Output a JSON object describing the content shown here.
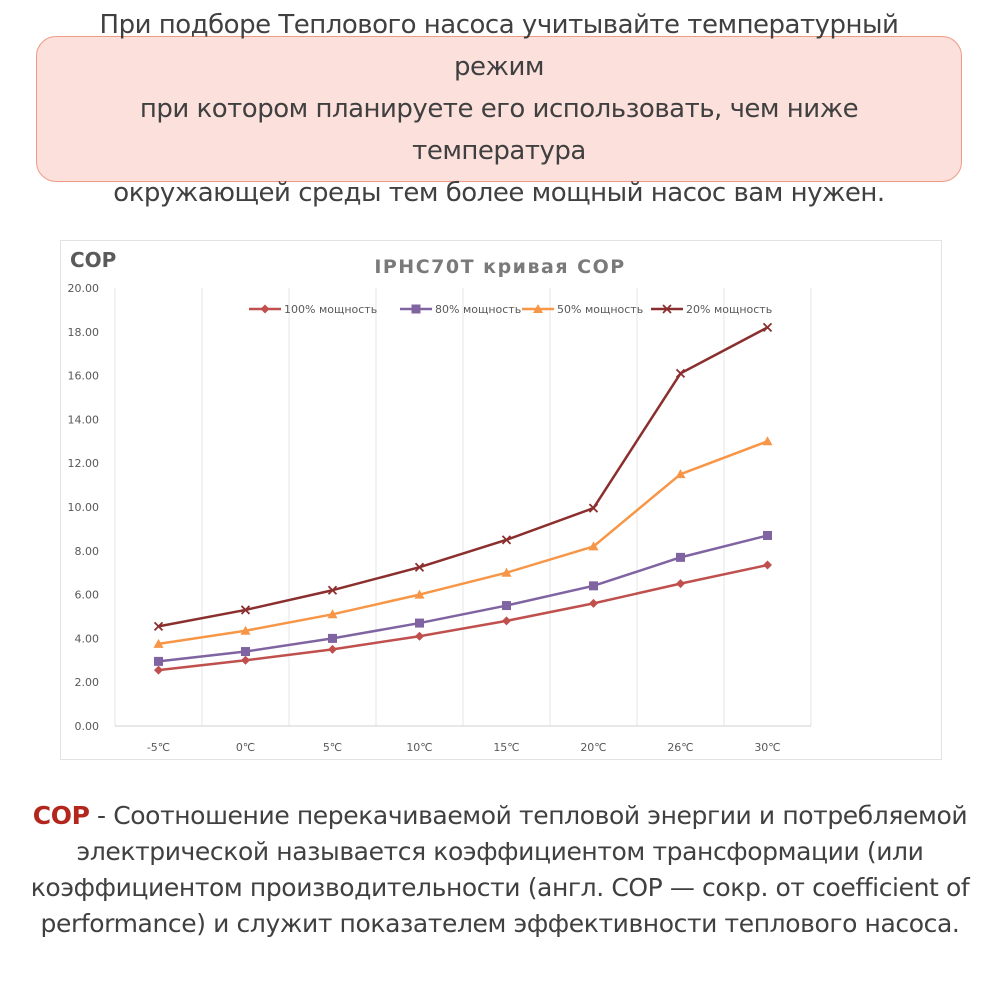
{
  "note": {
    "line1": "При подборе  Теплового насоса учитывайте температурный режим",
    "line2": "при котором планируете его использовать,  чем ниже температура",
    "line3": "окружающей среды тем более мощный насос вам нужен."
  },
  "chart_data": {
    "type": "line",
    "title": "IPHC70T кривая COP",
    "ylabel": "COP",
    "xlabel": "",
    "categories": [
      "-5℃",
      "0℃",
      "5℃",
      "10℃",
      "15℃",
      "20℃",
      "26℃",
      "30℃"
    ],
    "ylim": [
      0,
      20
    ],
    "yticks": [
      "0.00",
      "2.00",
      "4.00",
      "6.00",
      "8.00",
      "10.00",
      "12.00",
      "14.00",
      "16.00",
      "18.00",
      "20.00"
    ],
    "grid": "vertical",
    "legend": "top",
    "series": [
      {
        "name": "100% мощность",
        "color": "#c0504d",
        "marker": "diamond",
        "values": [
          2.55,
          3.0,
          3.5,
          4.1,
          4.8,
          5.6,
          6.5,
          7.35
        ]
      },
      {
        "name": "80% мощность",
        "color": "#8064a2",
        "marker": "square",
        "values": [
          2.95,
          3.4,
          4.0,
          4.7,
          5.5,
          6.4,
          7.7,
          8.7
        ]
      },
      {
        "name": "50% мощность",
        "color": "#f79646",
        "marker": "triangle",
        "values": [
          3.75,
          4.35,
          5.1,
          6.0,
          7.0,
          8.2,
          11.5,
          13.0
        ]
      },
      {
        "name": "20% мощность",
        "color": "#8b2e2e",
        "marker": "x",
        "values": [
          4.55,
          5.3,
          6.2,
          7.25,
          8.5,
          9.95,
          16.1,
          18.2
        ]
      }
    ]
  },
  "definition": {
    "term": "COP",
    "text": " - Соотношение перекачиваемой тепловой энергии и потребляемой электрической называется коэффициентом трансформации (или коэффициентом производительности (англ. COP — сокр. от coefficient of performance) и служит показателем эффективности теплового насоса."
  }
}
